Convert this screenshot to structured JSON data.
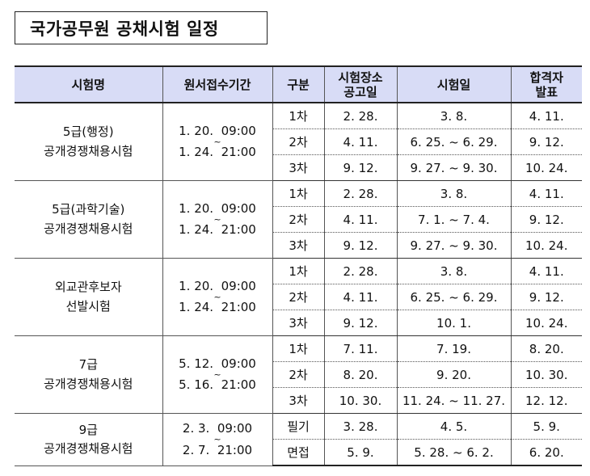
{
  "title": "국가공무원 공채시험 일정",
  "headers": {
    "exam_name": "시험명",
    "application_period": "원서접수기간",
    "division": "구분",
    "venue_notice_line1": "시험장소",
    "venue_notice_line2": "공고일",
    "exam_date": "시험일",
    "result_line1": "합격자",
    "result_line2": "발표"
  },
  "groups": [
    {
      "name_line1": "5급(행정)",
      "name_line2": "공개경쟁채용시험",
      "period_start": "1. 20.  09:00",
      "period_tilde": "~",
      "period_end": "1. 24.  21:00",
      "rows": [
        {
          "division": "1차",
          "venue_notice": "2. 28.",
          "exam_date": "3. 8.",
          "result": "4. 11."
        },
        {
          "division": "2차",
          "venue_notice": "4. 11.",
          "exam_date": "6. 25. ~ 6. 29.",
          "result": "9. 12."
        },
        {
          "division": "3차",
          "venue_notice": "9. 12.",
          "exam_date": "9. 27. ~ 9. 30.",
          "result": "10. 24."
        }
      ]
    },
    {
      "name_line1": "5급(과학기술)",
      "name_line2": "공개경쟁채용시험",
      "period_start": "1. 20.  09:00",
      "period_tilde": "~",
      "period_end": "1. 24.  21:00",
      "rows": [
        {
          "division": "1차",
          "venue_notice": "2. 28.",
          "exam_date": "3. 8.",
          "result": "4. 11."
        },
        {
          "division": "2차",
          "venue_notice": "4. 11.",
          "exam_date": "7. 1. ~ 7. 4.",
          "result": "9. 12."
        },
        {
          "division": "3차",
          "venue_notice": "9. 12.",
          "exam_date": "9. 27. ~ 9. 30.",
          "result": "10. 24."
        }
      ]
    },
    {
      "name_line1": "외교관후보자",
      "name_line2": "선발시험",
      "period_start": "1. 20.  09:00",
      "period_tilde": "~",
      "period_end": "1. 24.  21:00",
      "rows": [
        {
          "division": "1차",
          "venue_notice": "2. 28.",
          "exam_date": "3. 8.",
          "result": "4. 11."
        },
        {
          "division": "2차",
          "venue_notice": "4. 11.",
          "exam_date": "6. 25. ~ 6. 29.",
          "result": "9. 12."
        },
        {
          "division": "3차",
          "venue_notice": "9. 12.",
          "exam_date": "10. 1.",
          "result": "10. 24."
        }
      ]
    },
    {
      "name_line1": "7급",
      "name_line2": "공개경쟁채용시험",
      "period_start": "5. 12.  09:00",
      "period_tilde": "~",
      "period_end": "5. 16.  21:00",
      "rows": [
        {
          "division": "1차",
          "venue_notice": "7. 11.",
          "exam_date": "7. 19.",
          "result": "8. 20."
        },
        {
          "division": "2차",
          "venue_notice": "8. 20.",
          "exam_date": "9. 20.",
          "result": "10. 30."
        },
        {
          "division": "3차",
          "venue_notice": "10. 30.",
          "exam_date": "11. 24. ~ 11. 27.",
          "result": "12. 12."
        }
      ]
    },
    {
      "name_line1": "9급",
      "name_line2": "공개경쟁채용시험",
      "period_start": "2. 3.  09:00",
      "period_tilde": "~",
      "period_end": "2. 7.  21:00",
      "rows": [
        {
          "division": "필기",
          "venue_notice": "3. 28.",
          "exam_date": "4. 5.",
          "result": "5. 9."
        },
        {
          "division": "면접",
          "venue_notice": "5. 9.",
          "exam_date": "5. 28. ~ 6. 2.",
          "result": "6. 20."
        }
      ]
    }
  ]
}
